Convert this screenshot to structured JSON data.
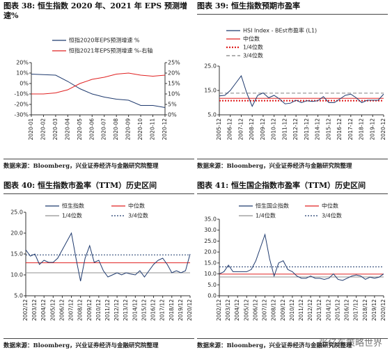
{
  "chart_data": [
    {
      "type": "line",
      "title": "图表 38:  恒生指数 2020 年、2021 年 EPS 预测增速%",
      "source": "数据来源：Bloomberg，兴业证券经济与金融研究院整理",
      "categories": [
        "2020-01",
        "2020-02",
        "2020-03",
        "2020-04",
        "2020-05",
        "2020-06",
        "2020-07",
        "2020-08",
        "2020-09",
        "2020-10",
        "2020-11",
        "2020-12"
      ],
      "series": [
        {
          "name": "恒指2020年EPS预测增速 %",
          "color": "#1f3a6e",
          "values": [
            9,
            8.5,
            8,
            2,
            -5,
            -10,
            -13,
            -15,
            -16,
            -21,
            -21,
            -23
          ]
        },
        {
          "name": "恒指2021年EPS预测增速 %-右轴",
          "color": "#e02020",
          "axis": "y2",
          "values": [
            10,
            10,
            10.5,
            12,
            15,
            17,
            18,
            19.5,
            20,
            19,
            18.5,
            19
          ]
        }
      ],
      "ylim": [
        -30,
        20
      ],
      "yticks": [
        {
          "value": 20,
          "label": "20%"
        },
        {
          "value": 10,
          "label": "10%"
        },
        {
          "value": 0,
          "label": "0%"
        },
        {
          "value": -10,
          "label": "-10%"
        },
        {
          "value": -20,
          "label": "-20%"
        },
        {
          "value": -30,
          "label": "-30%"
        }
      ],
      "y2lim": [
        0,
        25
      ],
      "y2ticks": [
        {
          "value": 25,
          "label": "25%"
        },
        {
          "value": 20,
          "label": "20%"
        },
        {
          "value": 15,
          "label": "15%"
        },
        {
          "value": 10,
          "label": "10%"
        },
        {
          "value": 5,
          "label": "5%"
        },
        {
          "value": 0,
          "label": "0%"
        }
      ]
    },
    {
      "type": "line",
      "title": "图表 39:  恒生指数预期市盈率",
      "source": "数据来源：Bloomberg，兴业证券经济与金融研究院整理",
      "categories": [
        "2005-12",
        null,
        "2006-12",
        null,
        "2007-12",
        null,
        "2008-12",
        null,
        "2009-12",
        null,
        "2010-12",
        null,
        "2011-12",
        null,
        "2012-12",
        null,
        "2013-12",
        null,
        "2014-12",
        null,
        "2015-12",
        null,
        "2016-12",
        null,
        "2017-12",
        null,
        "2018-12",
        null,
        "2019-12",
        null,
        "2020-12"
      ],
      "series": [
        {
          "name": "HSI Index - BEst市盈率 (L1)",
          "color": "#1f3a6e",
          "values": [
            12.8,
            13,
            15,
            18,
            21,
            14,
            8.5,
            13,
            14,
            12,
            13,
            11.5,
            9.5,
            9.8,
            11,
            10,
            10.8,
            10.5,
            10.8,
            12.5,
            10,
            10,
            11.5,
            13,
            13.5,
            12,
            10,
            11,
            11,
            11,
            13.5
          ]
        }
      ],
      "reference_lines": [
        {
          "name": "中位数",
          "color": "#e02020",
          "style": "solid",
          "value": 11.8
        },
        {
          "name": "1/4位数",
          "color": "#e02020",
          "style": "dotted",
          "value": 10.8
        },
        {
          "name": "3/4位数",
          "color": "#808080",
          "style": "dashed",
          "value": 13.9
        }
      ],
      "ylim": [
        5,
        25
      ],
      "yticks": [
        {
          "value": 25,
          "label": "25.0"
        },
        {
          "value": 15,
          "label": "15.0"
        },
        {
          "value": 5,
          "label": "5.0"
        }
      ]
    },
    {
      "type": "line",
      "title": "图表 40:  恒生指数市盈率（TTM）历史区间",
      "source": "数据来源：Bloomberg，兴业证券经济与金融研究院整理",
      "categories": [
        "2002/12",
        null,
        "2003/12",
        null,
        "2004/12",
        null,
        "2005/12",
        null,
        "2006/12",
        null,
        "2007/12",
        null,
        "2008/12",
        null,
        "2009/12",
        null,
        "2010/12",
        null,
        "2011/12",
        null,
        "2012/12",
        null,
        "2013/12",
        null,
        "2014/12",
        null,
        "2015/12",
        null,
        "2016/12",
        null,
        "2017/12",
        null,
        "2018/12",
        null,
        "2019/12",
        null,
        "2020/12"
      ],
      "series": [
        {
          "name": "恒生指数",
          "color": "#1f3a6e",
          "values": [
            16,
            14.5,
            15,
            12.5,
            13.5,
            13,
            13,
            14,
            16,
            18,
            20,
            14,
            8.5,
            14,
            17,
            13,
            13.5,
            11,
            9.5,
            10,
            10.5,
            10,
            10.5,
            10.2,
            10,
            11,
            9.5,
            11,
            12.5,
            13.5,
            14,
            12.5,
            10.5,
            11,
            10.5,
            11,
            15
          ]
        }
      ],
      "reference_lines": [
        {
          "name": "中位数",
          "color": "#e02020",
          "style": "solid",
          "value": 12.9
        },
        {
          "name": "1/4位数",
          "color": "#909090",
          "style": "solid",
          "value": 10.5
        },
        {
          "name": "3/4位数",
          "color": "#1f3a6e",
          "style": "dotted",
          "value": 14.8
        }
      ],
      "ylim": [
        5,
        25
      ],
      "yticks": [
        {
          "value": 25,
          "label": "25.0"
        },
        {
          "value": 20,
          "label": "20.0"
        },
        {
          "value": 15,
          "label": "15.0"
        },
        {
          "value": 10,
          "label": "10.0"
        },
        {
          "value": 5,
          "label": "5.0"
        }
      ]
    },
    {
      "type": "line",
      "title": "图表 41:  恒生国企指数市盈率（TTM）历史区间",
      "source": "数据来源：Bloomberg，兴业证券经济与金融研究院整理",
      "categories": [
        "2002/12",
        null,
        "2003/12",
        null,
        "2004/12",
        null,
        "2005/12",
        null,
        "2006/12",
        null,
        "2007/12",
        null,
        "2008/12",
        null,
        "2009/12",
        null,
        "2010/12",
        null,
        "2011/12",
        null,
        "2012/12",
        null,
        "2013/12",
        null,
        "2014/12",
        null,
        "2015/12",
        null,
        "2016/12",
        null,
        "2017/12",
        null,
        "2018/12",
        null,
        "2019/12",
        null,
        "2020/12"
      ],
      "series": [
        {
          "name": "恒生国企指数",
          "color": "#1f3a6e",
          "values": [
            10,
            11,
            14,
            11,
            11,
            11,
            11,
            12,
            16,
            22,
            28,
            17,
            9,
            15,
            16,
            12,
            11,
            9,
            8,
            8,
            9,
            8,
            8,
            7.5,
            8,
            10,
            7.5,
            7,
            8,
            9,
            9.5,
            9,
            7.5,
            8.5,
            8,
            8.5,
            10
          ]
        }
      ],
      "reference_lines": [
        {
          "name": "中位数",
          "color": "#e02020",
          "style": "solid",
          "value": 9.9
        },
        {
          "name": "1/4位数",
          "color": "#909090",
          "style": "solid",
          "value": 8.6
        },
        {
          "name": "3/4位数",
          "color": "#1f3a6e",
          "style": "dotted",
          "value": 13.2
        }
      ],
      "ylim": [
        0,
        35
      ],
      "yticks": [
        {
          "value": 35,
          "label": "35.0"
        },
        {
          "value": 30,
          "label": "30.0"
        },
        {
          "value": 25,
          "label": "25.0"
        },
        {
          "value": 20,
          "label": "20.0"
        },
        {
          "value": 15,
          "label": "15.0"
        },
        {
          "value": 10,
          "label": "10.0"
        },
        {
          "value": 5,
          "label": "5.0"
        },
        {
          "value": 0,
          "label": "0.0"
        }
      ]
    }
  ],
  "watermark": "张亿东策略世界"
}
